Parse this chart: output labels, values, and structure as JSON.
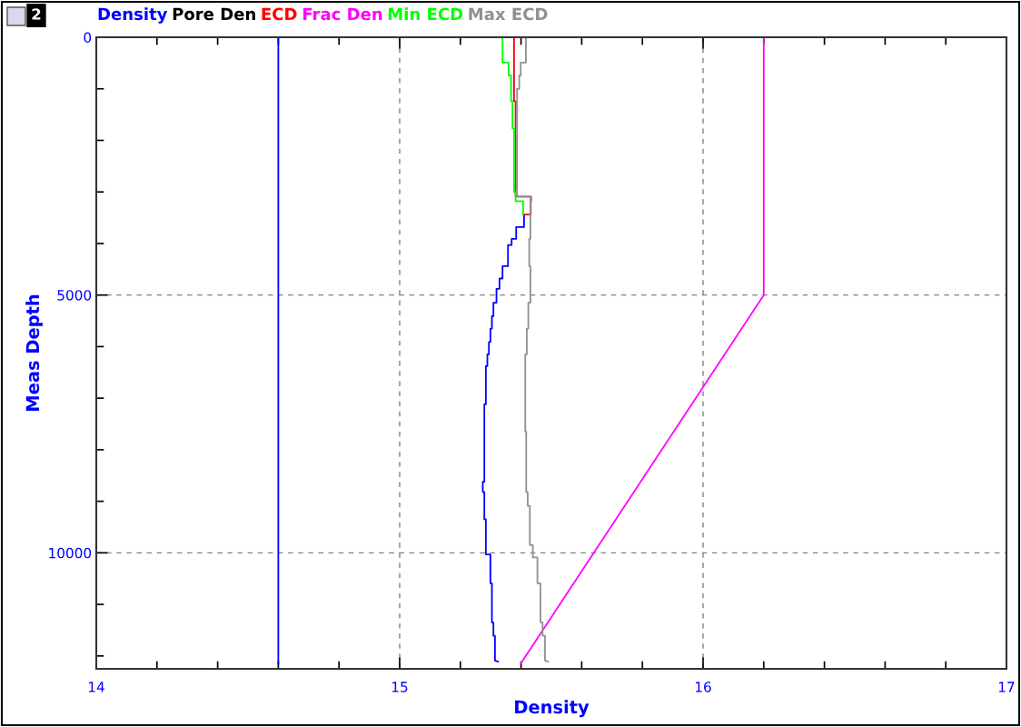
{
  "chart_data": {
    "type": "line",
    "xlabel": "Density",
    "ylabel": "Meas Depth",
    "annotations": [
      "2"
    ],
    "xlim": [
      14,
      17
    ],
    "xticks": [
      14,
      {
        "value": 14.2,
        "label": null
      },
      {
        "value": 14.4,
        "label": null
      },
      {
        "value": 14.6,
        "label": null
      },
      {
        "value": 14.8,
        "label": null
      },
      15,
      {
        "value": 15.2,
        "label": null
      },
      {
        "value": 15.4,
        "label": null
      },
      {
        "value": 15.6,
        "label": null
      },
      {
        "value": 15.8,
        "label": null
      },
      16,
      {
        "value": 16.2,
        "label": null
      },
      {
        "value": 16.4,
        "label": null
      },
      {
        "value": 16.6,
        "label": null
      },
      {
        "value": 16.8,
        "label": null
      },
      17
    ],
    "ylim": [
      12250,
      0
    ],
    "yticks": [
      0,
      {
        "value": 1000,
        "label": null
      },
      {
        "value": 2000,
        "label": null
      },
      {
        "value": 3000,
        "label": null
      },
      {
        "value": 4000,
        "label": null
      },
      5000,
      {
        "value": 6000,
        "label": null
      },
      {
        "value": 7000,
        "label": null
      },
      {
        "value": 8000,
        "label": null
      },
      {
        "value": 9000,
        "label": null
      },
      10000,
      {
        "value": 11000,
        "label": null
      },
      {
        "value": 12000,
        "label": null
      }
    ],
    "grid": true,
    "legend": "top",
    "line_style": "solid",
    "marker": "none",
    "series": [
      {
        "name": "Density",
        "color": "#0000ff",
        "x": [
          14.6,
          14.6,
          null,
          15.41,
          15.41,
          15.384,
          15.384,
          15.369,
          15.369,
          15.357,
          15.357,
          15.339,
          15.339,
          15.329,
          15.329,
          15.319,
          15.319,
          15.309,
          15.309,
          15.304,
          15.304,
          15.299,
          15.299,
          15.294,
          15.294,
          15.289,
          15.289,
          15.284,
          15.284,
          15.279,
          15.279,
          15.274,
          15.274,
          15.279,
          15.279,
          15.284,
          15.284,
          15.299,
          15.299,
          15.304,
          15.304,
          15.309,
          15.309,
          15.314,
          15.314,
          15.324
        ],
        "values": [
          0,
          12150,
          null,
          3440,
          3680,
          3680,
          3910,
          3910,
          4030,
          4030,
          4440,
          4440,
          4680,
          4680,
          4880,
          4880,
          5150,
          5150,
          5410,
          5410,
          5650,
          5650,
          5910,
          5910,
          6150,
          6150,
          6380,
          6380,
          7120,
          7120,
          8620,
          8620,
          8820,
          8820,
          9350,
          9350,
          10030,
          10030,
          10590,
          10590,
          11350,
          11350,
          11610,
          11610,
          12090,
          12110
        ]
      },
      {
        "name": "Pore Den",
        "color": "#000000"
      },
      {
        "name": "ECD",
        "color": "#ff0000",
        "x": [
          15.377,
          15.377,
          15.382,
          15.382,
          15.432,
          15.432,
          15.41
        ],
        "values": [
          0,
          1240,
          1240,
          3090,
          3090,
          3440,
          3440
        ]
      },
      {
        "name": "Frac Den",
        "color": "#ff00ff",
        "x": [
          16.2,
          16.2,
          15.4
        ],
        "values": [
          0,
          5000,
          12140
        ]
      },
      {
        "name": "Min ECD",
        "color": "#00ff00",
        "x": [
          15.339,
          15.339,
          15.359,
          15.359,
          15.367,
          15.367,
          15.372,
          15.372,
          15.377,
          15.377,
          15.382,
          15.382,
          15.407,
          15.407
        ],
        "values": [
          0,
          490,
          490,
          740,
          740,
          1240,
          1240,
          1770,
          1770,
          3000,
          3000,
          3180,
          3180,
          3440
        ]
      },
      {
        "name": "Max ECD",
        "color": "#909090",
        "x": [
          15.416,
          15.416,
          15.399,
          15.399,
          15.394,
          15.394,
          15.387,
          15.387,
          15.434,
          15.434,
          15.431,
          15.431,
          15.427,
          15.427,
          15.431,
          15.431,
          15.424,
          15.424,
          15.419,
          15.419,
          15.414,
          15.414,
          15.417,
          15.417,
          15.422,
          15.422,
          15.429,
          15.429,
          15.439,
          15.439,
          15.454,
          15.454,
          15.464,
          15.464,
          15.471,
          15.471,
          15.479,
          15.479,
          15.489
        ],
        "values": [
          0,
          490,
          490,
          740,
          740,
          1000,
          1000,
          3090,
          3090,
          3180,
          3180,
          3910,
          3910,
          4440,
          4440,
          5150,
          5150,
          5650,
          5650,
          6150,
          6150,
          7650,
          7650,
          8820,
          8820,
          9090,
          9090,
          9850,
          9850,
          10090,
          10090,
          10590,
          10590,
          11350,
          11350,
          11610,
          11610,
          12090,
          12110
        ]
      }
    ]
  }
}
